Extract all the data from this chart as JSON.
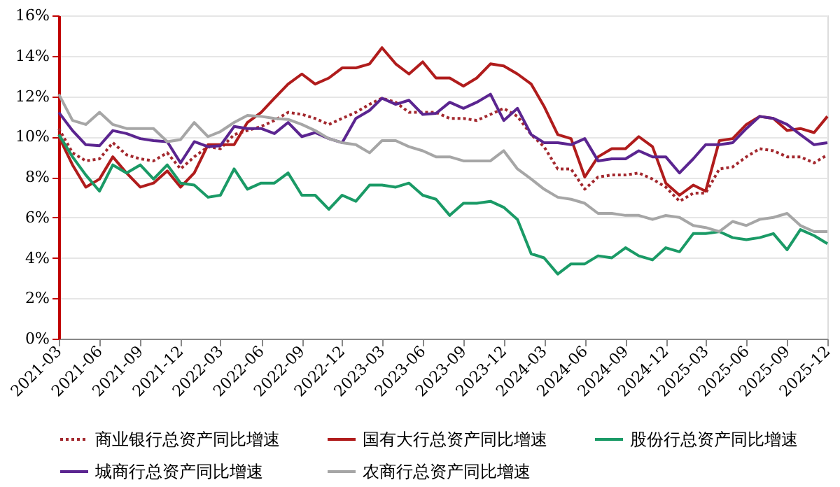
{
  "chart_data": {
    "type": "line",
    "x": [
      "2021-03",
      "2021-04",
      "2021-05",
      "2021-06",
      "2021-07",
      "2021-08",
      "2021-09",
      "2021-10",
      "2021-11",
      "2021-12",
      "2022-01",
      "2022-02",
      "2022-03",
      "2022-04",
      "2022-05",
      "2022-06",
      "2022-07",
      "2022-08",
      "2022-09",
      "2022-10",
      "2022-11",
      "2022-12",
      "2023-01",
      "2023-02",
      "2023-03",
      "2023-04",
      "2023-05",
      "2023-06",
      "2023-07",
      "2023-08",
      "2023-09",
      "2023-10",
      "2023-11",
      "2023-12",
      "2024-01",
      "2024-02",
      "2024-03",
      "2024-04",
      "2024-05",
      "2024-06",
      "2024-07",
      "2024-08",
      "2024-09",
      "2024-10",
      "2024-11",
      "2024-12",
      "2025-01",
      "2025-02",
      "2025-03",
      "2025-04",
      "2025-05",
      "2025-06",
      "2025-07",
      "2025-08",
      "2025-09",
      "2025-10",
      "2025-11",
      "2025-12"
    ],
    "series": [
      {
        "name": "商业银行总资产同比增速",
        "color": "#a3282e",
        "line_style": "dotted",
        "values": [
          10.4,
          9.2,
          8.8,
          8.9,
          9.7,
          9.1,
          8.9,
          8.8,
          9.2,
          8.4,
          9.0,
          9.5,
          9.4,
          10.1,
          10.3,
          10.5,
          10.8,
          11.2,
          11.1,
          10.9,
          10.6,
          10.9,
          11.2,
          11.6,
          11.9,
          11.7,
          11.2,
          11.2,
          11.2,
          10.9,
          10.9,
          10.8,
          11.1,
          11.4,
          11.0,
          10.1,
          9.5,
          8.4,
          8.4,
          7.4,
          8.0,
          8.1,
          8.1,
          8.2,
          7.9,
          7.5,
          6.8,
          7.2,
          7.2,
          8.4,
          8.5,
          9.0,
          9.4,
          9.3,
          9.0,
          9.0,
          8.7,
          9.1
        ]
      },
      {
        "name": "国有大行总资产同比增速",
        "color": "#b01c1c",
        "values": [
          10.0,
          8.6,
          7.5,
          7.9,
          9.0,
          8.2,
          7.5,
          7.7,
          8.3,
          7.5,
          8.2,
          9.6,
          9.6,
          9.6,
          10.7,
          11.2,
          11.9,
          12.6,
          13.1,
          12.6,
          12.9,
          13.4,
          13.4,
          13.6,
          14.4,
          13.6,
          13.1,
          13.7,
          12.9,
          12.9,
          12.5,
          12.9,
          13.6,
          13.5,
          13.1,
          12.6,
          11.5,
          10.1,
          9.9,
          8.0,
          9.0,
          9.4,
          9.4,
          10.0,
          9.5,
          7.7,
          7.1,
          7.6,
          7.3,
          9.8,
          9.9,
          10.6,
          11.0,
          10.9,
          10.3,
          10.4,
          10.2,
          11.0
        ]
      },
      {
        "name": "股份行总资产同比增速",
        "color": "#1a9a66",
        "values": [
          10.1,
          9.0,
          8.1,
          7.3,
          8.6,
          8.2,
          8.6,
          7.9,
          8.6,
          7.7,
          7.6,
          7.0,
          7.1,
          8.4,
          7.4,
          7.7,
          7.7,
          8.2,
          7.1,
          7.1,
          6.4,
          7.1,
          6.8,
          7.6,
          7.6,
          7.5,
          7.7,
          7.1,
          6.9,
          6.1,
          6.7,
          6.7,
          6.8,
          6.5,
          5.9,
          4.2,
          4.0,
          3.2,
          3.7,
          3.7,
          4.1,
          4.0,
          4.5,
          4.1,
          3.9,
          4.5,
          4.3,
          5.2,
          5.2,
          5.3,
          5.0,
          4.9,
          5.0,
          5.2,
          4.4,
          5.4,
          5.1,
          4.7
        ]
      },
      {
        "name": "城商行总资产同比增速",
        "color": "#5b2590",
        "values": [
          11.2,
          10.3,
          9.6,
          9.55,
          10.3,
          10.15,
          9.9,
          9.8,
          9.75,
          8.7,
          9.75,
          9.5,
          9.55,
          10.5,
          10.4,
          10.4,
          10.15,
          10.7,
          10.0,
          10.2,
          9.9,
          9.7,
          10.9,
          11.3,
          11.9,
          11.6,
          11.8,
          11.1,
          11.15,
          11.7,
          11.4,
          11.7,
          12.1,
          10.8,
          11.4,
          10.1,
          9.7,
          9.7,
          9.6,
          9.9,
          8.8,
          8.9,
          8.9,
          9.3,
          9.0,
          9.0,
          8.2,
          8.9,
          9.6,
          9.6,
          9.7,
          10.4,
          11.0,
          10.9,
          10.6,
          10.1,
          9.6,
          9.7
        ]
      },
      {
        "name": "农商行总资产同比增速",
        "color": "#a6a6a6",
        "values": [
          12.1,
          10.8,
          10.6,
          11.2,
          10.6,
          10.4,
          10.4,
          10.4,
          9.75,
          9.85,
          10.7,
          10.0,
          10.25,
          10.7,
          11.05,
          11.0,
          10.9,
          10.85,
          10.6,
          10.3,
          9.9,
          9.7,
          9.6,
          9.2,
          9.8,
          9.8,
          9.5,
          9.3,
          9.0,
          9.0,
          8.8,
          8.8,
          8.8,
          9.3,
          8.4,
          7.9,
          7.4,
          7.0,
          6.9,
          6.7,
          6.2,
          6.2,
          6.1,
          6.1,
          5.9,
          6.1,
          6.0,
          5.6,
          5.5,
          5.3,
          5.8,
          5.6,
          5.9,
          6.0,
          6.2,
          5.6,
          5.3,
          5.3
        ]
      }
    ],
    "xlim": [
      "2021-03",
      "2025-12"
    ],
    "xticks": [
      "2021-03",
      "2021-06",
      "2021-09",
      "2021-12",
      "2022-03",
      "2022-06",
      "2022-09",
      "2022-12",
      "2023-03",
      "2023-06",
      "2023-09",
      "2023-12",
      "2024-03",
      "2024-06",
      "2024-09",
      "2024-12",
      "2025-03",
      "2025-06",
      "2025-09",
      "2025-12"
    ],
    "ylim": [
      0,
      16
    ],
    "yticks": [
      {
        "value": 0,
        "label": "0%"
      },
      {
        "value": 2,
        "label": "2%"
      },
      {
        "value": 4,
        "label": "4%"
      },
      {
        "value": 6,
        "label": "6%"
      },
      {
        "value": 8,
        "label": "8%"
      },
      {
        "value": 10,
        "label": "10%"
      },
      {
        "value": 12,
        "label": "12%"
      },
      {
        "value": 14,
        "label": "14%"
      },
      {
        "value": 16,
        "label": "16%"
      }
    ],
    "grid": "y",
    "legend": "bottom",
    "marker": "none"
  }
}
